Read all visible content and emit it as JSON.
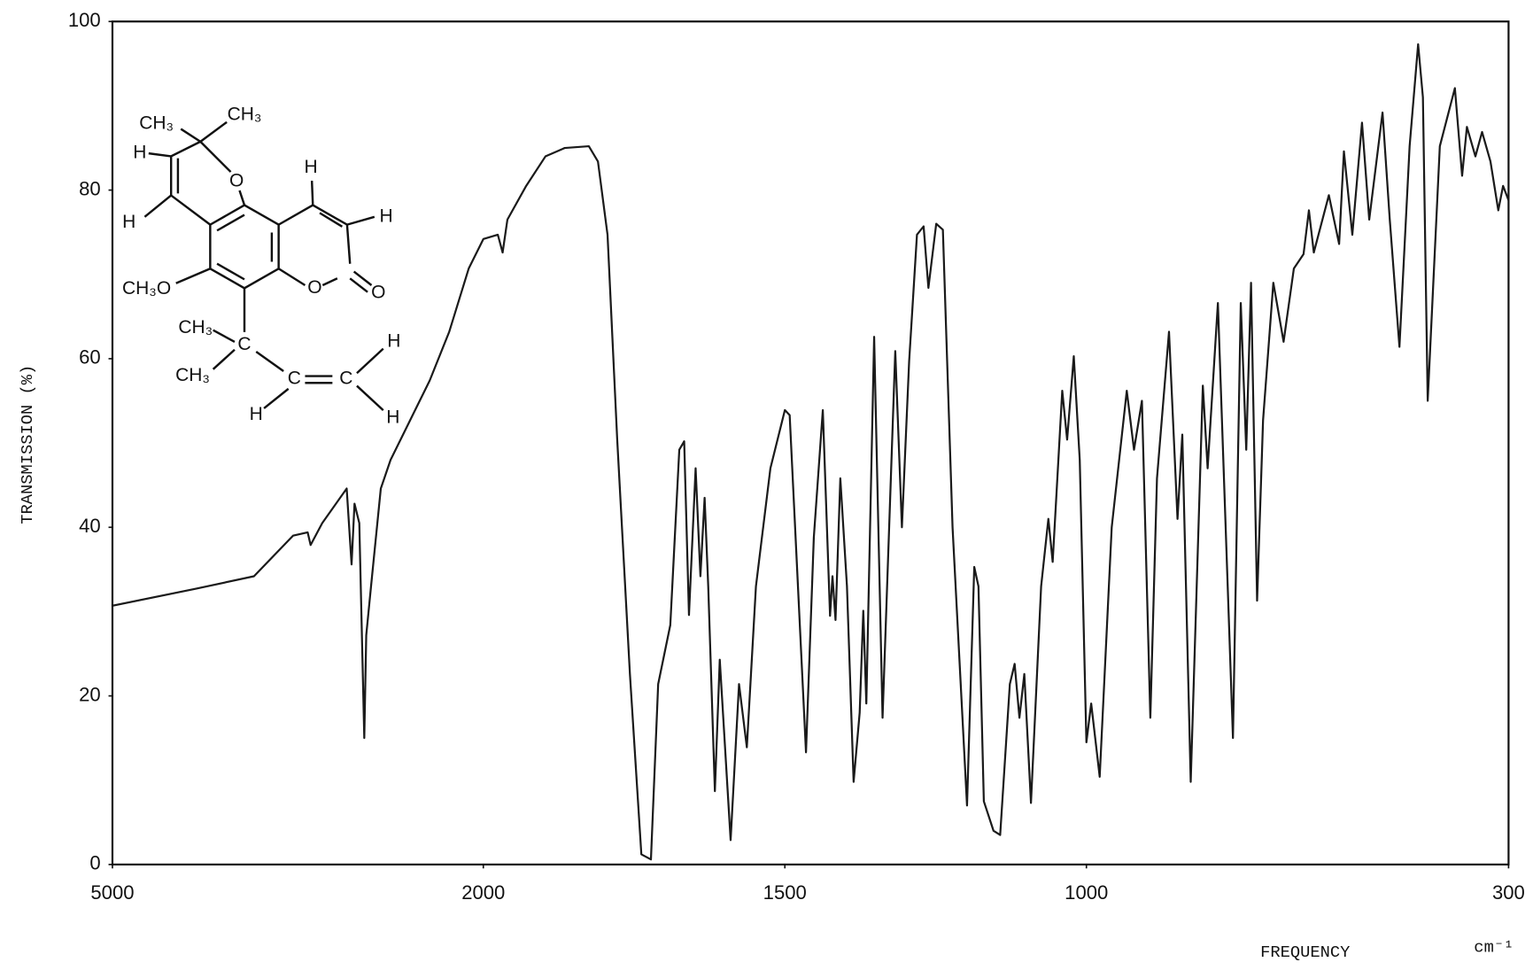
{
  "chart_data": {
    "type": "line",
    "y_label": "TRANSMISSION (%)",
    "x_label": "FREQUENCY",
    "x_unit": "cm⁻¹",
    "xlim": [
      5000,
      300
    ],
    "xticks": [
      5000,
      2000,
      1500,
      1000,
      300
    ],
    "ylim": [
      0,
      100
    ],
    "yticks": [
      0,
      20,
      40,
      60,
      80,
      100
    ],
    "grid": false,
    "color": "#1a1a1a",
    "x": [
      5000,
      4329,
      3855,
      3539,
      3421,
      3397,
      3303,
      3105,
      3066,
      3042,
      3003,
      2963,
      2947,
      2908,
      2829,
      2750,
      2592,
      2434,
      2276,
      2118,
      2000,
      1976,
      1968,
      1960,
      1929,
      1897,
      1865,
      1825,
      1810,
      1794,
      1778,
      1757,
      1738,
      1722,
      1710,
      1690,
      1675,
      1667,
      1659,
      1648,
      1640,
      1633,
      1627,
      1616,
      1608,
      1590,
      1576,
      1563,
      1548,
      1524,
      1500,
      1492,
      1465,
      1452,
      1437,
      1425,
      1421,
      1416,
      1408,
      1397,
      1386,
      1376,
      1370,
      1365,
      1352,
      1338,
      1317,
      1306,
      1294,
      1281,
      1270,
      1262,
      1249,
      1238,
      1222,
      1198,
      1186,
      1179,
      1170,
      1154,
      1143,
      1127,
      1119,
      1111,
      1103,
      1092,
      1075,
      1063,
      1056,
      1040,
      1032,
      1021,
      1011,
      1000,
      992,
      978,
      958,
      933,
      921,
      908,
      894,
      883,
      863,
      849,
      841,
      827,
      807,
      799,
      782,
      757,
      744,
      735,
      727,
      717,
      707,
      690,
      673,
      656,
      640,
      631,
      623,
      598,
      581,
      573,
      559,
      543,
      531,
      509,
      497,
      481,
      464,
      450,
      442,
      434,
      414,
      389,
      377,
      369,
      355,
      344,
      330,
      317,
      309,
      300
    ],
    "values": [
      30.7,
      32.7,
      34.2,
      39,
      39.4,
      37.9,
      40.5,
      44.6,
      35.6,
      42.8,
      40.5,
      15,
      27.2,
      33,
      44.6,
      48,
      52.7,
      57.4,
      63.2,
      70.7,
      74.2,
      74.7,
      72.6,
      76.5,
      80.5,
      84,
      85,
      85.2,
      83.4,
      74.7,
      50.4,
      22.6,
      1.2,
      0.6,
      21.4,
      28.4,
      49.2,
      50.2,
      29.6,
      47,
      34.2,
      43.5,
      33,
      8.7,
      24.3,
      2.9,
      21.4,
      13.9,
      33,
      47,
      53.9,
      53.3,
      13.3,
      38.8,
      53.9,
      29.5,
      34.2,
      29,
      45.8,
      33,
      9.8,
      18,
      30.1,
      19.1,
      62.6,
      17.4,
      60.9,
      40,
      59.7,
      74.7,
      75.7,
      68.4,
      76,
      75.3,
      40,
      7,
      35.3,
      33,
      7.5,
      4,
      3.5,
      21.4,
      23.8,
      17.4,
      22.6,
      7.3,
      33,
      41,
      35.9,
      56.2,
      50.4,
      60.3,
      48,
      14.5,
      19.1,
      10.4,
      40,
      56.2,
      49.2,
      55,
      17.4,
      45.8,
      63.2,
      41,
      51,
      9.8,
      56.8,
      47,
      66.6,
      15,
      66.6,
      49.2,
      69,
      31.3,
      52.7,
      69,
      62,
      70.7,
      72.4,
      77.6,
      72.6,
      79.4,
      73.6,
      84.6,
      74.7,
      88,
      76.5,
      89.2,
      76.5,
      61.4,
      85.2,
      97.3,
      91,
      55,
      85.2,
      92.1,
      81.7,
      87.5,
      84,
      86.9,
      83.4,
      77.6,
      80.5,
      78.8
    ],
    "structure_labels": [
      "CH₃",
      "CH₃",
      "H",
      "H",
      "H",
      "H",
      "O",
      "CH₃O",
      "O",
      "O",
      "CH₃",
      "C",
      "CH₃",
      "C",
      "C",
      "H",
      "H",
      "H"
    ]
  }
}
